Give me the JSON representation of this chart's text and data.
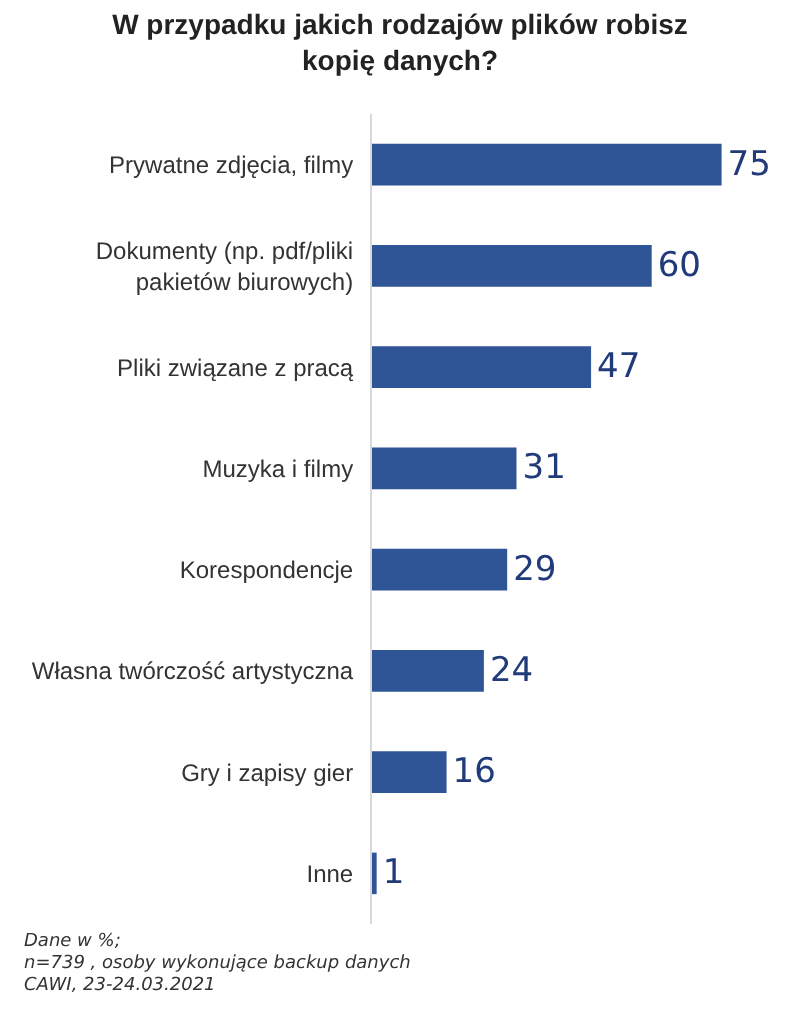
{
  "chart_data": {
    "type": "bar",
    "orientation": "horizontal",
    "title": "W przypadku jakich rodzajów plików robisz kopię danych?",
    "categories": [
      "Prywatne zdjęcia, filmy",
      "Dokumenty (np. pdf/pliki pakietów biurowych)",
      "Pliki związane z pracą",
      "Muzyka i filmy",
      "Korespondencje",
      "Własna twórczość artystyczna",
      "Gry i zapisy gier",
      "Inne"
    ],
    "values": [
      75,
      60,
      47,
      31,
      29,
      24,
      16,
      1
    ],
    "color": "#2f5597",
    "data_labels": true,
    "tick_labels": "y",
    "grid": false,
    "annotations": [
      "Dane w %;",
      "n=739 , osoby wykonujące backup danych",
      "CAWI, 23-24.03.2021"
    ]
  }
}
